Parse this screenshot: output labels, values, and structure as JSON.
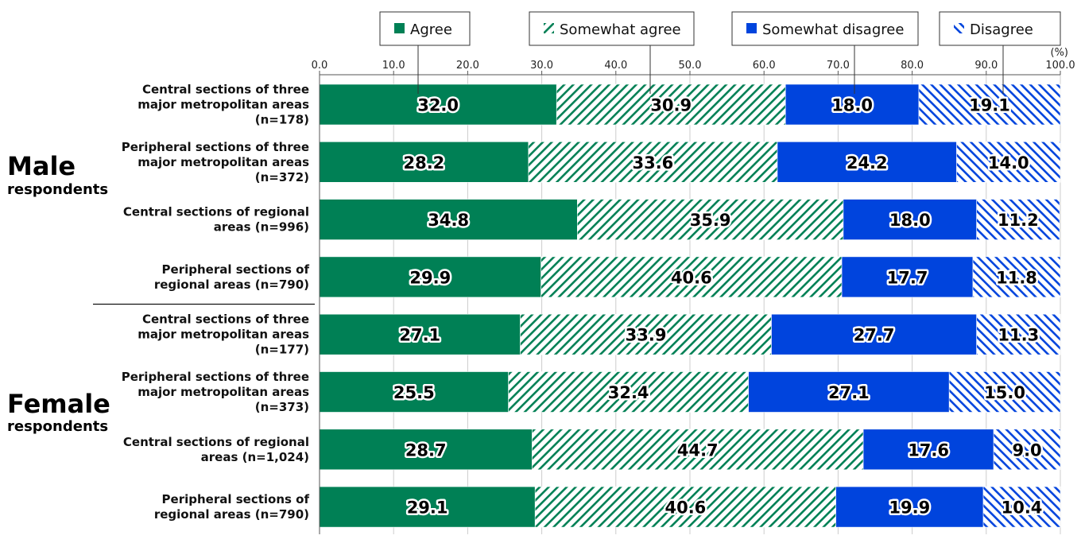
{
  "chart_data": {
    "type": "bar",
    "orientation": "horizontal",
    "stacked": true,
    "unit_label": "(%)",
    "xlim": [
      0,
      100
    ],
    "xticks": [
      "0.0",
      "10.0",
      "20.0",
      "30.0",
      "40.0",
      "50.0",
      "60.0",
      "70.0",
      "80.0",
      "90.0",
      "100.0"
    ],
    "groups": [
      {
        "title": "Male",
        "subtitle": "respondents"
      },
      {
        "title": "Female",
        "subtitle": "respondents"
      }
    ],
    "categories": [
      [
        "Central sections of three",
        "major metropolitan areas",
        "(n=178)"
      ],
      [
        "Peripheral sections of three",
        "major metropolitan areas",
        "(n=372)"
      ],
      [
        "Central sections of regional",
        "areas (n=996)"
      ],
      [
        "Peripheral sections of",
        "regional areas (n=790)"
      ],
      [
        "Central sections of three",
        "major metropolitan areas",
        "(n=177)"
      ],
      [
        "Peripheral sections of three",
        "major metropolitan areas",
        "(n=373)"
      ],
      [
        "Central sections of regional",
        "areas (n=1,024)"
      ],
      [
        "Peripheral sections of",
        "regional areas (n=790)"
      ]
    ],
    "series": [
      {
        "name": "Agree",
        "color": "#008055",
        "pattern": "solid",
        "values": [
          32.0,
          28.2,
          34.8,
          29.9,
          27.1,
          25.5,
          28.7,
          29.1
        ]
      },
      {
        "name": "Somewhat agree",
        "color": "#008055",
        "pattern": "hatch",
        "values": [
          30.9,
          33.6,
          35.9,
          40.6,
          33.9,
          32.4,
          44.7,
          40.6
        ]
      },
      {
        "name": "Somewhat disagree",
        "color": "#0044dd",
        "pattern": "solid",
        "values": [
          18.0,
          24.2,
          18.0,
          17.7,
          27.7,
          27.1,
          17.6,
          19.9
        ]
      },
      {
        "name": "Disagree",
        "color": "#0044dd",
        "pattern": "hatch",
        "values": [
          19.1,
          14.0,
          11.2,
          11.8,
          11.3,
          15.0,
          9.0,
          10.4
        ]
      }
    ]
  }
}
